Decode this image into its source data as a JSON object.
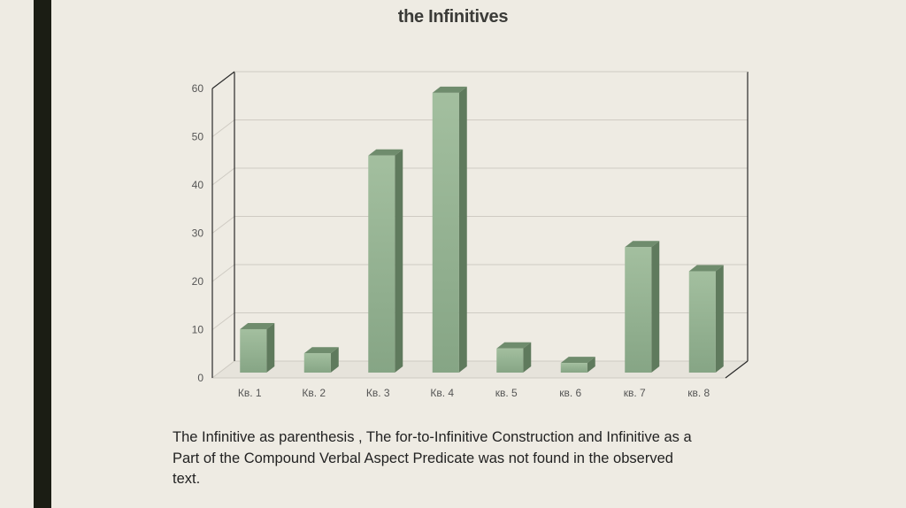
{
  "slide": {
    "title": "the Infinitives",
    "caption": "The Infinitive as parenthesis , The for-to-Infinitive Construction and Infinitive as a Part of the Compound Verbal Aspect Predicate was not found in the observed text."
  },
  "chart_data": {
    "type": "bar",
    "style": "3d-column",
    "title": "the Infinitives",
    "categories": [
      "Кв. 1",
      "Кв. 2",
      "Кв. 3",
      "Кв. 4",
      "кв. 5",
      "кв. 6",
      "кв. 7",
      "кв. 8"
    ],
    "values": [
      9,
      4,
      45,
      58,
      5,
      2,
      26,
      21
    ],
    "ylim": [
      0,
      60
    ],
    "yticks": [
      0,
      10,
      20,
      30,
      40,
      50,
      60
    ],
    "grid": true,
    "legend": "none",
    "colors": {
      "bar_front": "#8fb08e",
      "bar_side": "#5f7a5d",
      "bar_top": "#6f8c6d",
      "grid": "#cfcbc3",
      "wall": "#2a2a2a"
    }
  }
}
